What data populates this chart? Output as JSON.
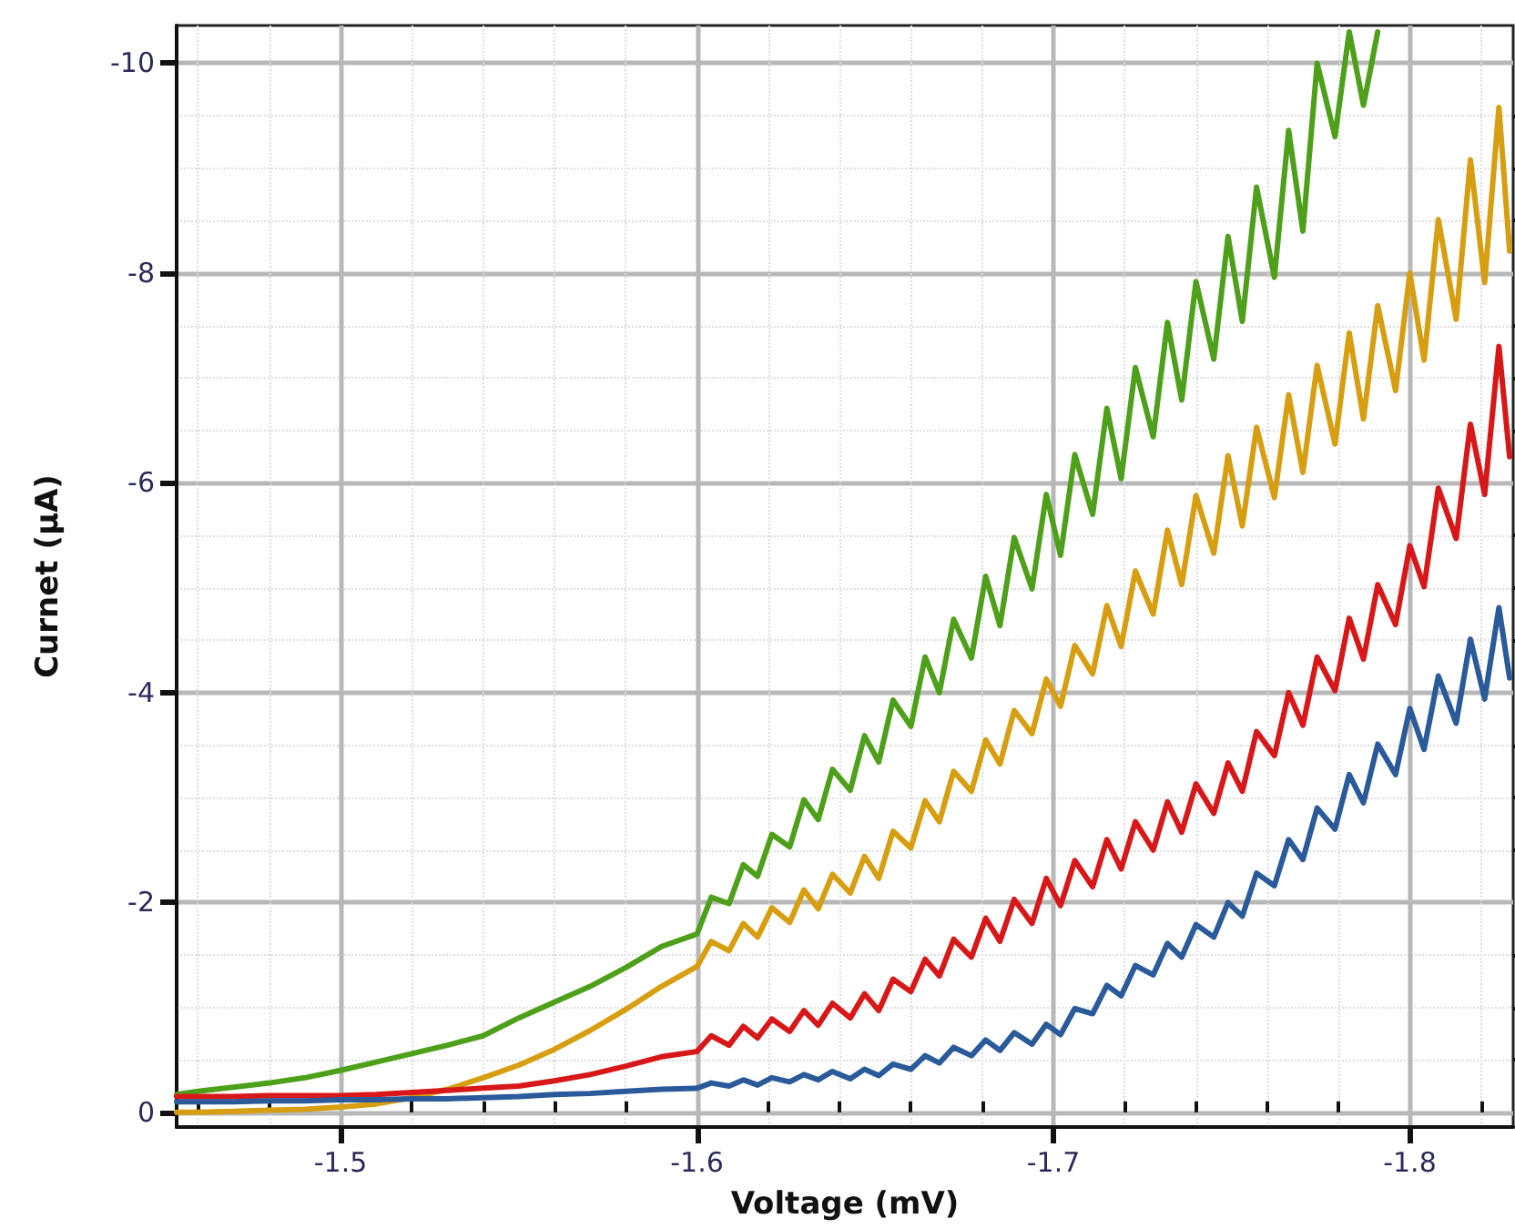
{
  "chart_data": {
    "type": "line",
    "xlabel": "Voltage (mV)",
    "ylabel": "Curnet (μA)",
    "grid": true,
    "marker": "none",
    "xlim": [
      -1.454,
      -1.829
    ],
    "ylim": [
      0.14,
      -10.36
    ],
    "xticks": [
      {
        "value": -1.46,
        "label": null
      },
      {
        "value": -1.48,
        "label": null
      },
      -1.5,
      {
        "value": -1.52,
        "label": null
      },
      {
        "value": -1.54,
        "label": null
      },
      {
        "value": -1.56,
        "label": null
      },
      {
        "value": -1.58,
        "label": null
      },
      -1.6,
      {
        "value": -1.62,
        "label": null
      },
      {
        "value": -1.64,
        "label": null
      },
      {
        "value": -1.66,
        "label": null
      },
      {
        "value": -1.68,
        "label": null
      },
      -1.7,
      {
        "value": -1.72,
        "label": null
      },
      {
        "value": -1.74,
        "label": null
      },
      {
        "value": -1.76,
        "label": null
      },
      {
        "value": -1.78,
        "label": null
      },
      -1.8,
      {
        "value": -1.82,
        "label": null
      }
    ],
    "yticks": [
      0,
      {
        "value": -0.5,
        "label": null
      },
      {
        "value": -1,
        "label": null
      },
      {
        "value": -1.5,
        "label": null
      },
      -2,
      {
        "value": -2.5,
        "label": null
      },
      {
        "value": -3,
        "label": null
      },
      {
        "value": -3.5,
        "label": null
      },
      -4,
      {
        "value": -4.5,
        "label": null
      },
      {
        "value": -5,
        "label": null
      },
      {
        "value": -5.5,
        "label": null
      },
      -6,
      {
        "value": -6.5,
        "label": null
      },
      {
        "value": -7,
        "label": null
      },
      {
        "value": -7.5,
        "label": null
      },
      -8,
      {
        "value": -8.5,
        "label": null
      },
      {
        "value": -9,
        "label": null
      },
      {
        "value": -9.5,
        "label": null
      },
      -10
    ],
    "x": [
      -1.454,
      -1.46,
      -1.47,
      -1.48,
      -1.49,
      -1.5,
      -1.51,
      -1.52,
      -1.53,
      -1.54,
      -1.55,
      -1.56,
      -1.57,
      -1.58,
      -1.59,
      -1.6,
      -1.604,
      -1.609,
      -1.613,
      -1.617,
      -1.621,
      -1.626,
      -1.63,
      -1.634,
      -1.638,
      -1.643,
      -1.647,
      -1.651,
      -1.655,
      -1.66,
      -1.664,
      -1.668,
      -1.672,
      -1.677,
      -1.681,
      -1.685,
      -1.689,
      -1.694,
      -1.698,
      -1.702,
      -1.706,
      -1.711,
      -1.715,
      -1.719,
      -1.723,
      -1.728,
      -1.732,
      -1.736,
      -1.74,
      -1.745,
      -1.749,
      -1.753,
      -1.757,
      -1.762,
      -1.766,
      -1.77,
      -1.774,
      -1.779,
      -1.783,
      -1.787,
      -1.791,
      -1.796,
      -1.8,
      -1.804,
      -1.808,
      -1.813,
      -1.817,
      -1.821,
      -1.825,
      -1.828
    ],
    "series": [
      {
        "color": "#4ea01a",
        "values": [
          -0.17,
          -0.2,
          -0.24,
          -0.28,
          -0.33,
          -0.4,
          -0.48,
          -0.56,
          -0.64,
          -0.73,
          -0.9,
          -1.05,
          -1.2,
          -1.38,
          -1.58,
          -1.7,
          -2.05,
          -1.99,
          -2.36,
          -2.25,
          -2.65,
          -2.53,
          -2.98,
          -2.79,
          -3.27,
          -3.07,
          -3.59,
          -3.34,
          -3.93,
          -3.68,
          -4.34,
          -4.0,
          -4.7,
          -4.33,
          -5.11,
          -4.64,
          -5.48,
          -4.99,
          -5.89,
          -5.31,
          -6.27,
          -5.7,
          -6.71,
          -6.04,
          -7.1,
          -6.44,
          -7.53,
          -6.79,
          -7.92,
          -7.18,
          -8.35,
          -7.54,
          -8.82,
          -7.96,
          -9.36,
          -8.4,
          -10.0,
          -9.3,
          -10.3,
          -9.6,
          -10.3,
          null,
          null,
          null,
          null,
          null,
          null,
          null,
          null,
          null
        ]
      },
      {
        "color": "#d69e10",
        "values": [
          0,
          0,
          -0.01,
          -0.02,
          -0.03,
          -0.05,
          -0.08,
          -0.14,
          -0.22,
          -0.33,
          -0.45,
          -0.6,
          -0.78,
          -0.98,
          -1.2,
          -1.39,
          -1.63,
          -1.54,
          -1.8,
          -1.67,
          -1.95,
          -1.81,
          -2.12,
          -1.94,
          -2.27,
          -2.09,
          -2.44,
          -2.23,
          -2.68,
          -2.52,
          -2.97,
          -2.77,
          -3.25,
          -3.06,
          -3.55,
          -3.32,
          -3.83,
          -3.61,
          -4.13,
          -3.87,
          -4.45,
          -4.18,
          -4.83,
          -4.44,
          -5.16,
          -4.75,
          -5.55,
          -5.03,
          -5.88,
          -5.33,
          -6.26,
          -5.59,
          -6.53,
          -5.86,
          -6.84,
          -6.1,
          -7.12,
          -6.37,
          -7.43,
          -6.61,
          -7.69,
          -6.88,
          -8.0,
          -7.17,
          -8.51,
          -7.56,
          -9.08,
          -7.91,
          -9.58,
          -8.21
        ]
      },
      {
        "color": "#d81818",
        "values": [
          -0.15,
          -0.15,
          -0.15,
          -0.16,
          -0.16,
          -0.16,
          -0.17,
          -0.19,
          -0.21,
          -0.23,
          -0.25,
          -0.3,
          -0.36,
          -0.44,
          -0.53,
          -0.58,
          -0.73,
          -0.64,
          -0.82,
          -0.71,
          -0.89,
          -0.77,
          -0.97,
          -0.83,
          -1.04,
          -0.9,
          -1.13,
          -0.97,
          -1.27,
          -1.15,
          -1.46,
          -1.3,
          -1.65,
          -1.48,
          -1.85,
          -1.63,
          -2.03,
          -1.8,
          -2.23,
          -1.97,
          -2.4,
          -2.15,
          -2.6,
          -2.32,
          -2.77,
          -2.5,
          -2.96,
          -2.67,
          -3.13,
          -2.85,
          -3.33,
          -3.06,
          -3.63,
          -3.4,
          -4.0,
          -3.69,
          -4.34,
          -4.02,
          -4.71,
          -4.32,
          -5.03,
          -4.65,
          -5.4,
          -5.01,
          -5.95,
          -5.47,
          -6.56,
          -5.89,
          -7.3,
          -6.25
        ]
      },
      {
        "color": "#2a5a9a",
        "values": [
          -0.1,
          -0.1,
          -0.1,
          -0.11,
          -0.11,
          -0.12,
          -0.12,
          -0.13,
          -0.13,
          -0.14,
          -0.15,
          -0.17,
          -0.18,
          -0.2,
          -0.22,
          -0.23,
          -0.28,
          -0.25,
          -0.31,
          -0.26,
          -0.33,
          -0.29,
          -0.36,
          -0.31,
          -0.39,
          -0.32,
          -0.41,
          -0.35,
          -0.46,
          -0.41,
          -0.54,
          -0.47,
          -0.62,
          -0.54,
          -0.69,
          -0.59,
          -0.76,
          -0.65,
          -0.84,
          -0.74,
          -0.99,
          -0.94,
          -1.21,
          -1.11,
          -1.4,
          -1.31,
          -1.61,
          -1.48,
          -1.79,
          -1.67,
          -2.0,
          -1.87,
          -2.28,
          -2.16,
          -2.6,
          -2.41,
          -2.9,
          -2.7,
          -3.22,
          -2.95,
          -3.51,
          -3.22,
          -3.85,
          -3.46,
          -4.16,
          -3.71,
          -4.51,
          -3.94,
          -4.81,
          -4.14
        ]
      }
    ]
  }
}
